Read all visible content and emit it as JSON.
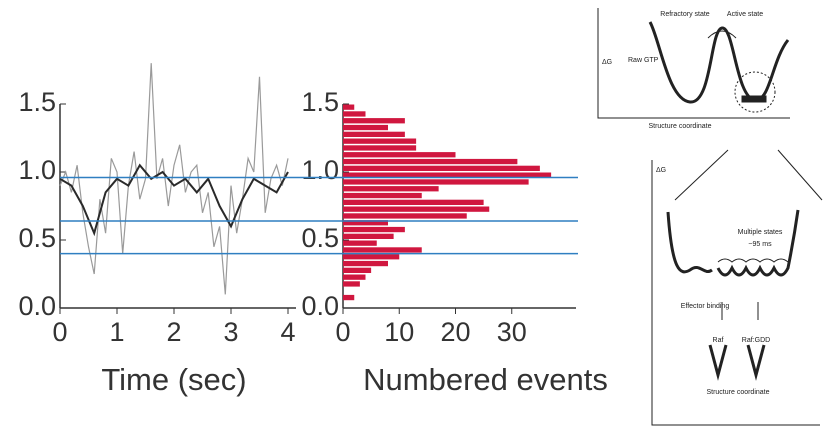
{
  "chart_data": [
    {
      "type": "line",
      "x_label": "Time (sec)",
      "xlim": [
        0,
        4
      ],
      "ylim": [
        0,
        1.5
      ],
      "xticks": [
        0,
        1,
        2,
        3,
        4
      ],
      "yticks": [
        {
          "value": 0,
          "label": "0.0"
        },
        0.5,
        {
          "value": 1,
          "label": "1.0"
        },
        1.5
      ],
      "reference_lines": [
        0.96,
        0.64,
        0.4
      ],
      "reference_color": "#2f7fc1",
      "series": [
        {
          "color": "#9a9a9a",
          "x": [
            0,
            0.1,
            0.2,
            0.3,
            0.4,
            0.5,
            0.6,
            0.7,
            0.8,
            0.9,
            1.0,
            1.1,
            1.2,
            1.3,
            1.4,
            1.5,
            1.6,
            1.7,
            1.8,
            1.9,
            2.0,
            2.1,
            2.2,
            2.3,
            2.4,
            2.5,
            2.6,
            2.7,
            2.8,
            2.9,
            3.0,
            3.1,
            3.2,
            3.3,
            3.4,
            3.5,
            3.6,
            3.7,
            3.8,
            3.9,
            4.0
          ],
          "values": [
            0.9,
            1.0,
            0.85,
            1.05,
            0.7,
            0.45,
            0.25,
            0.8,
            0.55,
            1.1,
            1.0,
            0.4,
            0.9,
            1.15,
            0.8,
            0.95,
            1.8,
            0.95,
            1.1,
            0.75,
            1.05,
            1.2,
            0.85,
            1.0,
            1.05,
            0.7,
            0.85,
            0.45,
            0.6,
            0.1,
            0.9,
            0.55,
            0.8,
            1.1,
            1.0,
            1.7,
            0.7,
            0.95,
            1.05,
            0.9,
            1.1
          ]
        },
        {
          "color": "#2a2a2a",
          "x": [
            0,
            0.2,
            0.4,
            0.6,
            0.8,
            1.0,
            1.2,
            1.4,
            1.6,
            1.8,
            2.0,
            2.2,
            2.4,
            2.6,
            2.8,
            3.0,
            3.2,
            3.4,
            3.6,
            3.8,
            4.0
          ],
          "values": [
            0.95,
            0.9,
            0.75,
            0.55,
            0.85,
            0.95,
            0.9,
            1.05,
            0.95,
            1.0,
            0.9,
            0.95,
            0.85,
            0.95,
            0.75,
            0.6,
            0.8,
            0.95,
            0.9,
            0.85,
            1.0
          ]
        }
      ]
    },
    {
      "type": "histogram",
      "x_label": "Numbered events",
      "color": "#d0173f",
      "xlim": [
        0,
        40
      ],
      "ylim": [
        0,
        1.5
      ],
      "xticks": [
        0,
        10,
        20,
        30
      ],
      "yticks": [
        {
          "value": 0,
          "label": "0.0"
        },
        0.5,
        {
          "value": 1,
          "label": "1.0"
        },
        1.5
      ],
      "bins": [
        0,
        0.05,
        0.1,
        0.15,
        0.2,
        0.25,
        0.3,
        0.35,
        0.4,
        0.45,
        0.5,
        0.55,
        0.6,
        0.65,
        0.7,
        0.75,
        0.8,
        0.85,
        0.9,
        0.95,
        1.0,
        1.05,
        1.1,
        1.15,
        1.2,
        1.25,
        1.3,
        1.35,
        1.4,
        1.45,
        1.5
      ],
      "values": [
        0,
        2,
        0,
        3,
        4,
        5,
        8,
        10,
        14,
        6,
        9,
        11,
        8,
        22,
        26,
        25,
        14,
        17,
        33,
        37,
        35,
        31,
        20,
        13,
        13,
        11,
        8,
        11,
        4,
        2
      ]
    }
  ],
  "diagram": {
    "top_panel": {
      "y_label": "ΔG",
      "left_label": "Raw GTP",
      "refractory": "Refractory state",
      "active": "Active state",
      "x_label": "Structure coordinate"
    },
    "bottom_panel": {
      "y_label": "ΔG",
      "states": "Multiple states",
      "time": "~95 ms",
      "effector": "Effector binding",
      "raf": "Raf",
      "raf_gdd": "Raf:GDD",
      "x_label": "Structure coordinate"
    }
  }
}
